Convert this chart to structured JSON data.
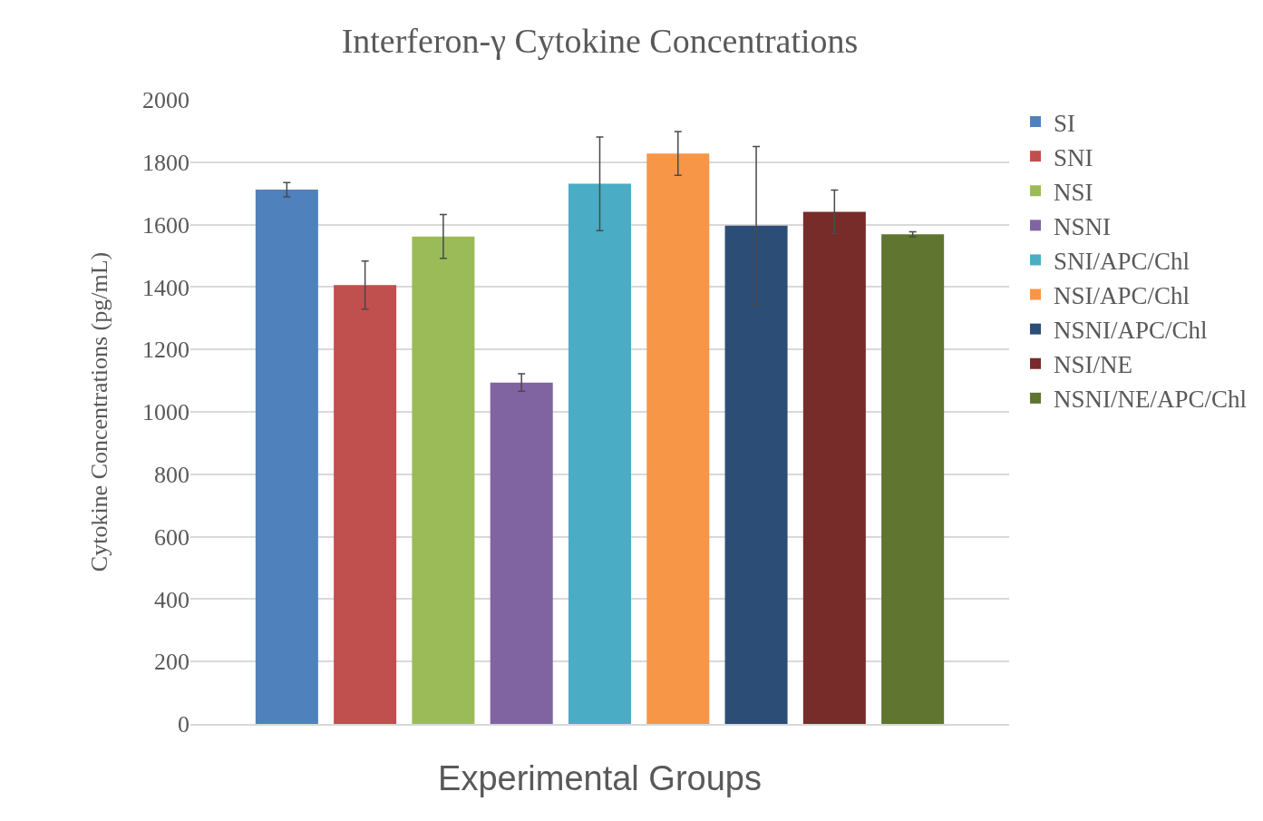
{
  "chart_data": {
    "type": "bar",
    "title": "Interferon-γ Cytokine Concentrations",
    "xlabel": "Experimental Groups",
    "ylabel": "Cytokine Concentrations (pg/mL)",
    "categories": [
      null
    ],
    "series": [
      {
        "name": "SI",
        "color": "#4f81bd",
        "values": [
          1712
        ],
        "errors": [
          23
        ]
      },
      {
        "name": "SNI",
        "color": "#c0504d",
        "values": [
          1406
        ],
        "errors": [
          77
        ]
      },
      {
        "name": "NSI",
        "color": "#9bbb59",
        "values": [
          1562
        ],
        "errors": [
          70
        ]
      },
      {
        "name": "NSNI",
        "color": "#8064a2",
        "values": [
          1094
        ],
        "errors": [
          28
        ]
      },
      {
        "name": "SNI/APC/Chl",
        "color": "#4bacc6",
        "values": [
          1731
        ],
        "errors": [
          150
        ]
      },
      {
        "name": "NSI/APC/Chl",
        "color": "#f79646",
        "values": [
          1828
        ],
        "errors": [
          70
        ]
      },
      {
        "name": "NSNI/APC/Chl",
        "color": "#2c4d75",
        "values": [
          1597
        ],
        "errors": [
          253
        ]
      },
      {
        "name": "NSI/NE",
        "color": "#772c2a",
        "values": [
          1641
        ],
        "errors": [
          70
        ]
      },
      {
        "name": "NSNI/NE/APC/Chl",
        "color": "#5f7530",
        "values": [
          1569
        ],
        "errors": [
          8
        ]
      }
    ],
    "ylim": [
      0,
      2000
    ],
    "yticks": [
      0,
      200,
      400,
      600,
      800,
      1000,
      1200,
      1400,
      1600,
      1800,
      2000
    ],
    "grid": "y",
    "legend": "right"
  }
}
